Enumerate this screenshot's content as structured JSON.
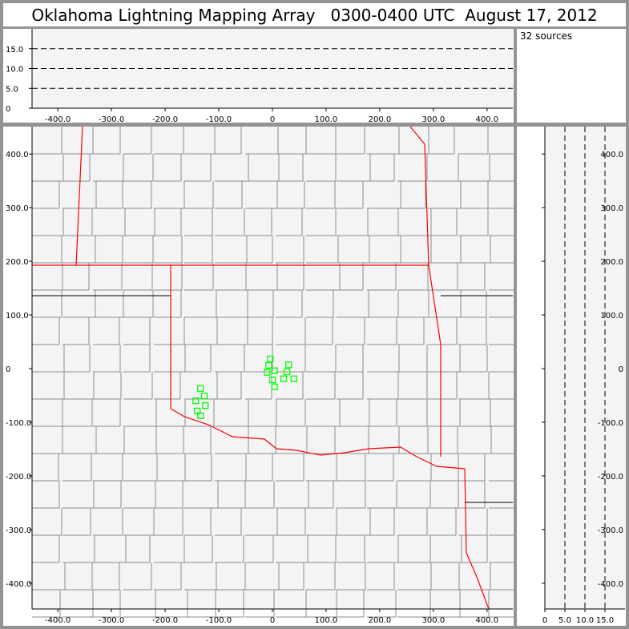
{
  "title": "Oklahoma Lightning Mapping Array   0300-0400 UTC  August 17, 2012",
  "source_count_label": "32 sources",
  "colors": {
    "background": "#f4f4f4",
    "frame": "#939393",
    "sources": "#00ff00",
    "state_border": "#ff0000",
    "county_border": "#8c8c8c",
    "grid": "#000000"
  },
  "chart_data": [
    {
      "type": "line",
      "panel": "altitude vs east-west",
      "xlim": [
        -448,
        448
      ],
      "ylim": [
        0,
        20
      ],
      "xticks": [
        "-400.0",
        "-300.0",
        "-200.0",
        "-100.0",
        "0",
        "100.0",
        "200.0",
        "300.0",
        "400.0"
      ],
      "xtick_values": [
        -400,
        -300,
        -200,
        -100,
        0,
        100,
        200,
        300,
        400
      ],
      "yticks": [
        "0",
        "5.0",
        "10.0",
        "15.0"
      ],
      "ytick_values": [
        0,
        5,
        10,
        15
      ],
      "grid": "dashed horizontal at 5, 10, 15"
    },
    {
      "type": "scatter",
      "panel": "plan view map",
      "xlim": [
        -448,
        448
      ],
      "ylim": [
        -448,
        451
      ],
      "xticks": [
        "-400.0",
        "-300.0",
        "-200.0",
        "-100.0",
        "0",
        "100.0",
        "200.0",
        "300.0",
        "400.0"
      ],
      "xtick_values": [
        -400,
        -300,
        -200,
        -100,
        0,
        100,
        200,
        300,
        400
      ],
      "yticks": [
        "-400.0",
        "-300.0",
        "-200.0",
        "-100.0",
        "0",
        "100.0",
        "200.0",
        "300.0",
        "400.0"
      ],
      "ytick_values": [
        -400,
        -300,
        -200,
        -100,
        0,
        100,
        200,
        300,
        400
      ],
      "marker": "hollow square",
      "points": [
        {
          "x": -4,
          "y": 18
        },
        {
          "x": -7,
          "y": 6
        },
        {
          "x": -10,
          "y": -7
        },
        {
          "x": 4,
          "y": -4
        },
        {
          "x": 30,
          "y": 7
        },
        {
          "x": 27,
          "y": -6
        },
        {
          "x": 21,
          "y": -19
        },
        {
          "x": 40,
          "y": -19
        },
        {
          "x": 0,
          "y": -21
        },
        {
          "x": 4,
          "y": -34
        },
        {
          "x": -134,
          "y": -37
        },
        {
          "x": -127,
          "y": -51
        },
        {
          "x": -143,
          "y": -60
        },
        {
          "x": -125,
          "y": -69
        },
        {
          "x": -140,
          "y": -79
        },
        {
          "x": -134,
          "y": -88
        }
      ]
    },
    {
      "type": "line",
      "panel": "north-south vs altitude",
      "xlim": [
        0,
        20
      ],
      "ylim": [
        -448,
        451
      ],
      "xticks": [
        "0",
        "5.0",
        "10.0",
        "15.0"
      ],
      "xtick_values": [
        0,
        5,
        10,
        15
      ],
      "yticks": [
        "-400.0",
        "-300.0",
        "-200.0",
        "-100.0",
        "0",
        "100.0",
        "200.0",
        "300.0",
        "400.0"
      ],
      "ytick_values": [
        -400,
        -300,
        -200,
        -100,
        0,
        100,
        200,
        300,
        400
      ],
      "grid": "dashed vertical at 5, 10, 15"
    }
  ]
}
